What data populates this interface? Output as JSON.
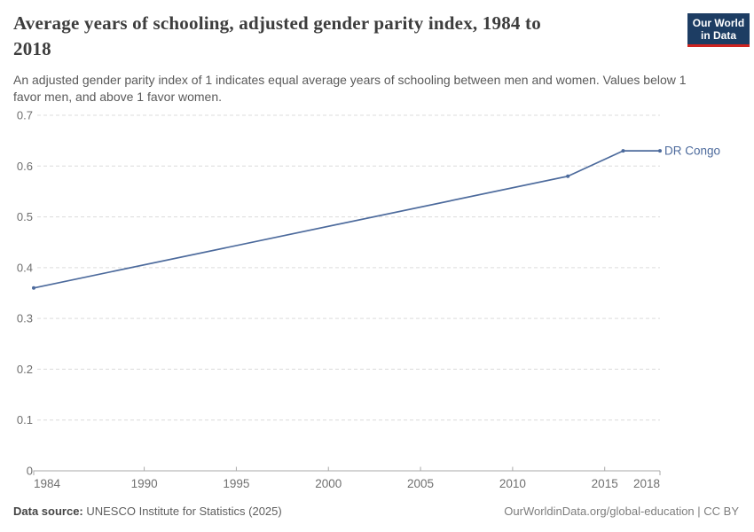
{
  "title": {
    "lines": [
      "Average years of schooling, adjusted gender parity index, 1984 to",
      "2018"
    ]
  },
  "subtitle": {
    "lines": [
      "An adjusted gender parity index of 1 indicates equal average years of schooling between men and women. Values below 1",
      "favor men, and above 1 favor women."
    ]
  },
  "logo": {
    "line1": "Our World",
    "line2": "in Data",
    "bg_color": "#1d3d63",
    "bar_color": "#cf2420"
  },
  "footer": {
    "data_source_label": "Data source:",
    "data_source_value": " UNESCO Institute for Statistics (2025)",
    "attribution": "OurWorldinData.org/global-education | CC BY"
  },
  "colors": {
    "series_line": "#4c6a9c",
    "series_label": "#4c6a9c",
    "gridline": "#dcdcdc",
    "axis_line": "#a8a8a8",
    "tick_label": "#6f6f6f"
  },
  "chart_data": {
    "type": "line",
    "title": "Average years of schooling, adjusted gender parity index, 1984 to 2018",
    "xlabel": "",
    "ylabel": "",
    "xlim": [
      1984,
      2018
    ],
    "ylim": [
      0,
      0.7
    ],
    "xticks": [
      1984,
      1990,
      1995,
      2000,
      2005,
      2010,
      2015,
      2018
    ],
    "yticks": {
      "values": [
        0,
        0.1,
        0.2,
        0.3,
        0.4,
        0.5,
        0.6,
        0.7
      ],
      "labels": [
        "0",
        "0.1",
        "0.2",
        "0.3",
        "0.4",
        "0.5",
        "0.6",
        "0.7"
      ]
    },
    "grid": "horizontal-dashed",
    "legend": "end-of-line-label",
    "series": [
      {
        "name": "DR Congo",
        "x": [
          1984,
          2013,
          2016,
          2018
        ],
        "values": [
          0.36,
          0.58,
          0.63,
          0.63
        ],
        "markers": true
      }
    ]
  }
}
